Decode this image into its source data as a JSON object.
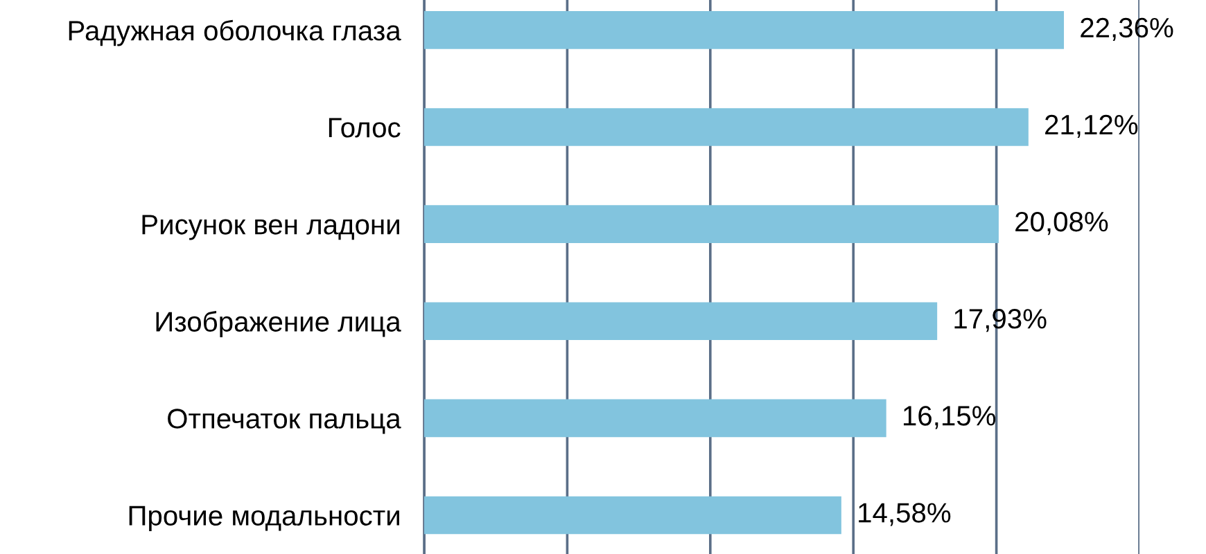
{
  "chart_data": {
    "type": "bar",
    "orientation": "horizontal",
    "categories": [
      "Радужная оболочка глаза",
      "Голос",
      "Рисунок вен ладони",
      "Изображение лица",
      "Отпечаток пальца",
      "Прочие модальности"
    ],
    "values": [
      22.36,
      21.12,
      20.08,
      17.93,
      16.15,
      14.58
    ],
    "color": "#82c4de",
    "value_labels": [
      "22,36%",
      "21,12%",
      "20,08%",
      "17,93%",
      "16,15%",
      "14,58%"
    ],
    "xlim": [
      0,
      25
    ],
    "xticks": [
      {
        "value": 0,
        "label": null
      },
      {
        "value": 5,
        "label": null
      },
      {
        "value": 10,
        "label": null
      },
      {
        "value": 15,
        "label": null
      },
      {
        "value": 20,
        "label": null
      },
      {
        "value": 25,
        "label": null
      }
    ],
    "grid": "x",
    "tick_labels": "y"
  }
}
